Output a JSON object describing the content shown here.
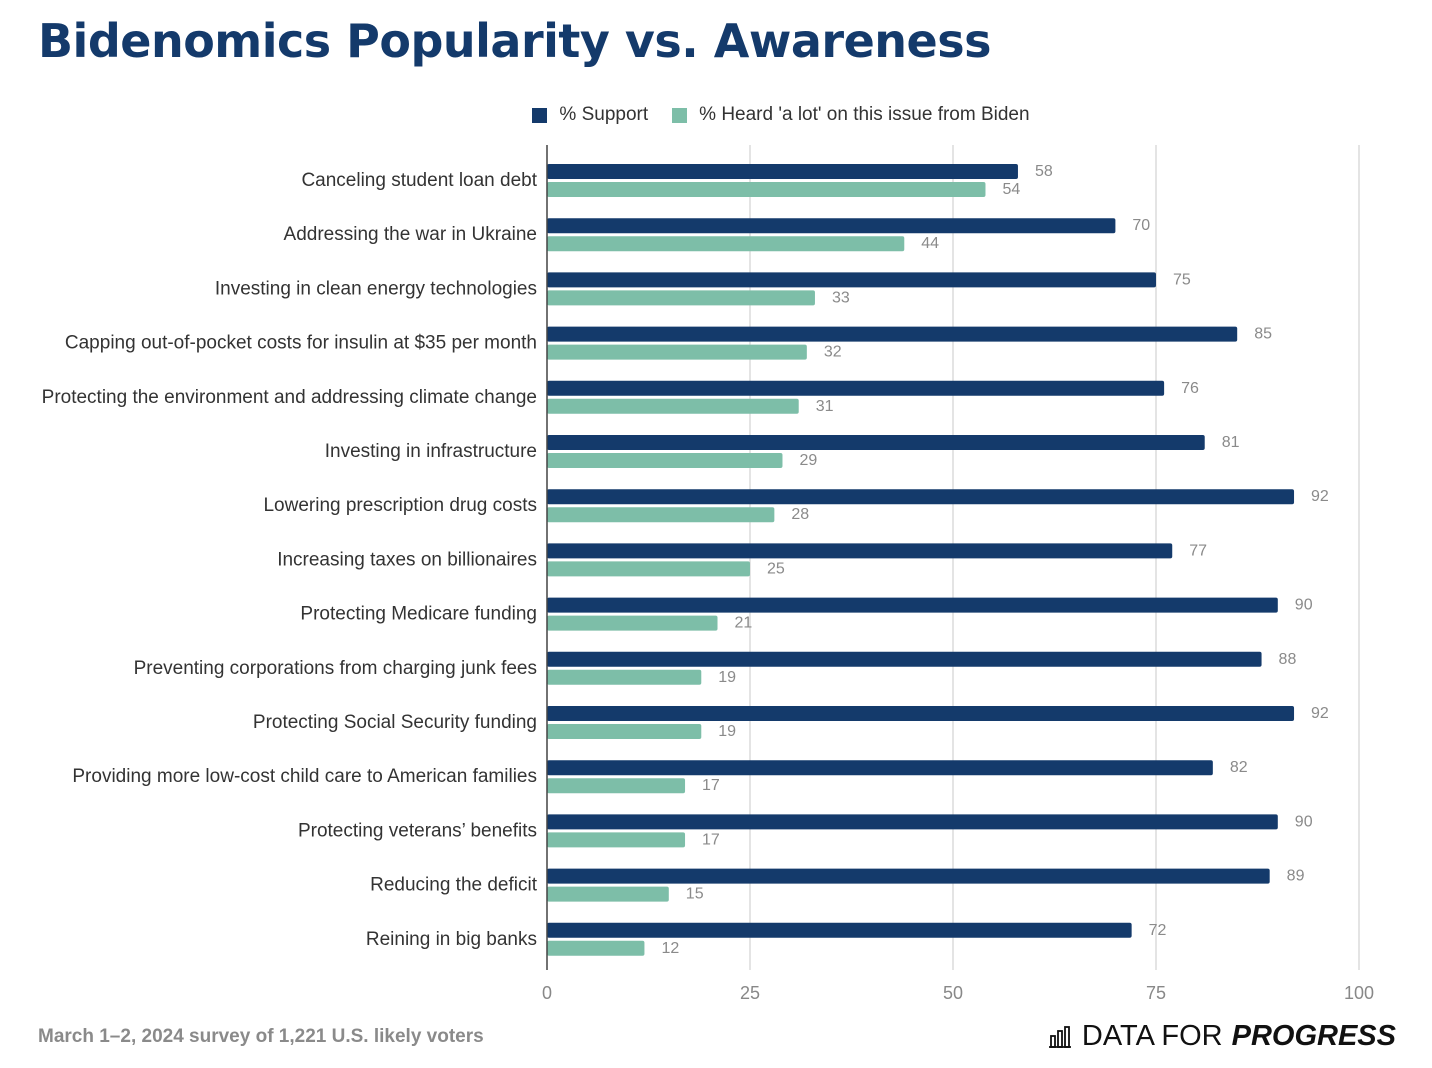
{
  "title": "Bidenomics Popularity vs. Awareness",
  "colors": {
    "support": "#143a6b",
    "heard": "#7dbea8",
    "title": "#143a6b",
    "grid": "#d6d6d6"
  },
  "footer": {
    "note": "March 1–2, 2024 survey of 1,221 U.S. likely voters",
    "brand_light": "DATA FOR",
    "brand_strong": "PROGRESS",
    "brand_icon": "bar-chart-icon"
  },
  "chart_data": {
    "type": "bar",
    "orientation": "horizontal",
    "categories": [
      "Canceling student loan debt",
      "Addressing the war in Ukraine",
      "Investing in clean energy technologies",
      "Capping out-of-pocket costs for insulin at $35 per month",
      "Protecting the environment and addressing climate change",
      "Investing in infrastructure",
      "Lowering prescription drug costs",
      "Increasing taxes on billionaires",
      "Protecting Medicare funding",
      "Preventing corporations from charging junk fees",
      "Protecting Social Security funding",
      "Providing more low-cost child care to American families",
      "Protecting veterans’ benefits",
      "Reducing the deficit",
      "Reining in big banks"
    ],
    "series": [
      {
        "name": "% Support",
        "values": [
          58,
          70,
          75,
          85,
          76,
          81,
          92,
          77,
          90,
          88,
          92,
          82,
          90,
          89,
          72
        ]
      },
      {
        "name": "% Heard 'a lot' on this issue from Biden",
        "values": [
          54,
          44,
          33,
          32,
          31,
          29,
          28,
          25,
          21,
          19,
          19,
          17,
          17,
          15,
          12
        ]
      }
    ],
    "xlim": [
      0,
      100
    ],
    "xticks": [
      0,
      25,
      50,
      75,
      100
    ],
    "grid": true,
    "legend": "top-center",
    "data_labels": true
  }
}
